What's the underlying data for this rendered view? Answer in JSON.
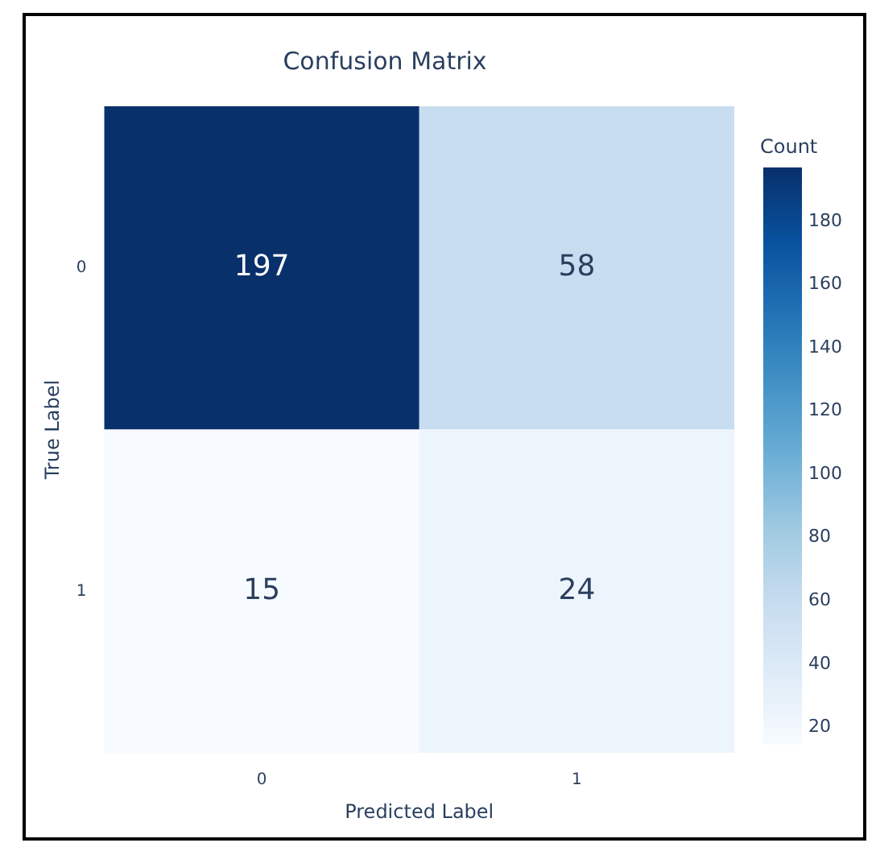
{
  "chart_data": {
    "type": "heatmap",
    "title": "Confusion Matrix",
    "xlabel": "Predicted Label",
    "ylabel": "True Label",
    "clabel": "Count",
    "categories": [
      "0",
      "1"
    ],
    "y_categories": [
      "0",
      "1"
    ],
    "cells": [
      [
        197,
        58
      ],
      [
        15,
        24
      ]
    ],
    "data_labels": true,
    "clim": [
      15,
      197
    ],
    "cticks": [
      20,
      40,
      60,
      80,
      100,
      120,
      140,
      160,
      180
    ]
  }
}
